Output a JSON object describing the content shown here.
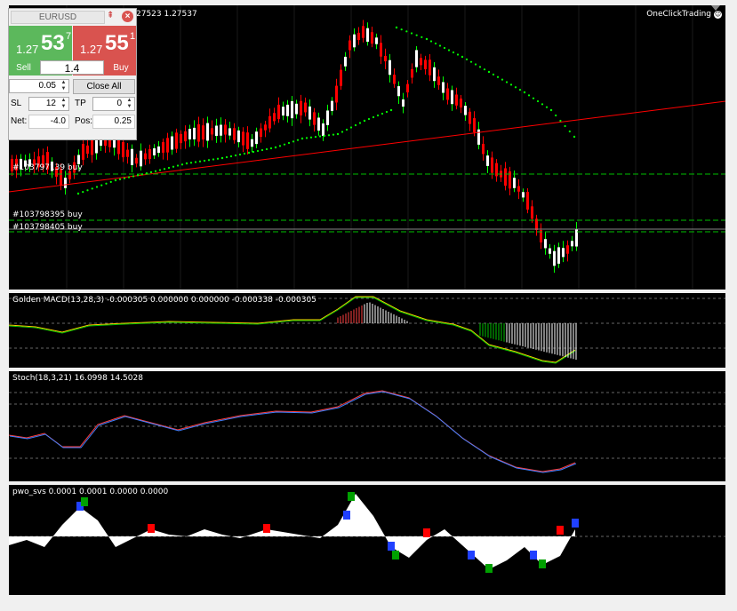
{
  "panel": {
    "symbol": "EURUSD",
    "sell_price": {
      "small": "1.27",
      "big": "53",
      "sup": "7"
    },
    "buy_price": {
      "small": "1.27",
      "big": "55",
      "sup": "1"
    },
    "sell_label": "Sell",
    "buy_label": "Buy",
    "lot": "1.4",
    "step": "0.05",
    "close_all_label": "Close All",
    "sl_label": "SL",
    "sl_value": "12",
    "tp_label": "TP",
    "tp_value": "0",
    "net_label": "Net:",
    "net_value": "-4.0",
    "pos_label": "Pos:",
    "pos_value": "0.25",
    "pin_icon": "pin-icon",
    "close_icon": "close-icon"
  },
  "main_chart": {
    "price_header": "27523 1.27537",
    "brand": "OneClickTrading",
    "order_labels": [
      "#103797139 buy",
      "#103798395 buy",
      "#103798405 buy"
    ],
    "colors": {
      "bull": "#ffffff",
      "bear": "#ff0000",
      "wick_bull": "#00ff00",
      "dots": "#00ff00",
      "trendline": "#ff0000",
      "order_line": "#00c000"
    }
  },
  "indicators": {
    "macd_label": "Golden MACD(13,28,3) -0.000305 0.000000 0.000000 -0.000338 -0.000305",
    "stoch_label": "Stoch(18,3,21) 16.0998 14.5028",
    "pwo_label": "pwo_svs 0.0001 0.0001 0.0000 0.0000"
  }
}
